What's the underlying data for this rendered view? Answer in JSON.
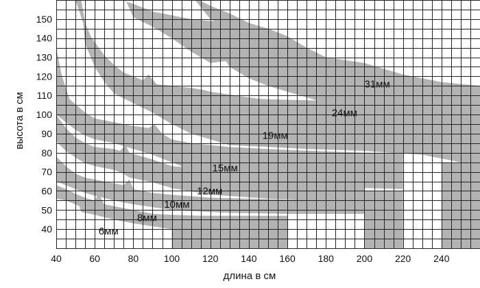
{
  "chart_data": {
    "type": "area",
    "title": "",
    "xlabel": "длина в см",
    "ylabel": "высота в см",
    "xlim": [
      40,
      260
    ],
    "ylim": [
      30,
      160
    ],
    "x_ticks": [
      40,
      60,
      80,
      100,
      120,
      140,
      160,
      180,
      200,
      220,
      240
    ],
    "y_ticks": [
      40,
      50,
      60,
      70,
      80,
      90,
      100,
      110,
      120,
      130,
      140,
      150
    ],
    "grid": true,
    "x_grid_step": 5,
    "y_grid_step": 5,
    "band_color": "#b3b3b3",
    "series": [
      {
        "name": "6мм",
        "label_pos": [
          62,
          39
        ],
        "upper": [
          [
            40,
            63
          ],
          [
            45,
            61
          ],
          [
            50,
            58.5
          ],
          [
            55,
            56.5
          ],
          [
            60,
            55
          ],
          [
            62,
            58.5
          ],
          [
            65,
            53
          ],
          [
            70,
            52
          ],
          [
            80,
            50
          ],
          [
            90,
            48
          ],
          [
            100,
            47.5
          ],
          [
            130,
            46.5
          ],
          [
            160,
            46.5
          ]
        ],
        "lower": [
          [
            40,
            56
          ],
          [
            45,
            55
          ],
          [
            50,
            53
          ],
          [
            52,
            52
          ],
          [
            53,
            49
          ],
          [
            60,
            47.5
          ],
          [
            70,
            45
          ],
          [
            80,
            43
          ],
          [
            90,
            41.5
          ],
          [
            100,
            40
          ],
          [
            130,
            39
          ],
          [
            160,
            38
          ]
        ],
        "bars": [
          {
            "x1": 100,
            "x2": 160,
            "top": 47,
            "bottom": 30
          }
        ]
      },
      {
        "name": "8мм",
        "label_pos": [
          82,
          46
        ],
        "upper": [
          [
            40,
            78
          ],
          [
            45,
            73
          ],
          [
            50,
            69
          ],
          [
            55,
            67
          ],
          [
            60,
            66
          ],
          [
            70,
            64
          ],
          [
            75,
            63
          ],
          [
            78,
            66
          ],
          [
            80,
            61
          ],
          [
            90,
            59
          ],
          [
            100,
            58
          ],
          [
            120,
            56.5
          ],
          [
            160,
            55.5
          ],
          [
            200,
            55.5
          ]
        ],
        "lower": [
          [
            40,
            65
          ],
          [
            45,
            63
          ],
          [
            50,
            61
          ],
          [
            55,
            59
          ],
          [
            60,
            57.5
          ],
          [
            70,
            55
          ],
          [
            80,
            53
          ],
          [
            90,
            51.5
          ],
          [
            100,
            50
          ],
          [
            130,
            48.5
          ],
          [
            160,
            48
          ],
          [
            200,
            48
          ]
        ],
        "bars": []
      },
      {
        "name": "10мм",
        "label_pos": [
          96,
          53
        ],
        "upper": [
          [
            40,
            100
          ],
          [
            45,
            93
          ],
          [
            50,
            88
          ],
          [
            55,
            85
          ],
          [
            60,
            83
          ],
          [
            70,
            82
          ],
          [
            73,
            81
          ],
          [
            76,
            84
          ],
          [
            78,
            80
          ],
          [
            90,
            76.5
          ],
          [
            100,
            73
          ],
          [
            120,
            71.5
          ],
          [
            140,
            71
          ],
          [
            160,
            70
          ],
          [
            180,
            69
          ],
          [
            200,
            68
          ]
        ],
        "lower": [
          [
            40,
            86
          ],
          [
            45,
            81
          ],
          [
            50,
            77.5
          ],
          [
            55,
            74.5
          ],
          [
            60,
            73
          ],
          [
            70,
            71
          ],
          [
            75,
            69
          ],
          [
            78,
            67
          ],
          [
            90,
            64.5
          ],
          [
            100,
            61.5
          ],
          [
            120,
            58
          ],
          [
            150,
            56
          ],
          [
            180,
            55
          ],
          [
            200,
            55
          ]
        ],
        "bars": []
      },
      {
        "name": "12мм",
        "label_pos": [
          113,
          60
        ],
        "upper": [
          [
            40,
            135
          ],
          [
            43,
            120
          ],
          [
            47,
            108
          ],
          [
            55,
            101
          ],
          [
            60,
            98
          ],
          [
            70,
            96
          ],
          [
            80,
            94
          ],
          [
            88,
            93
          ],
          [
            91,
            95
          ],
          [
            95,
            90
          ],
          [
            100,
            87
          ],
          [
            110,
            85
          ],
          [
            130,
            83
          ],
          [
            160,
            81.5
          ],
          [
            200,
            80
          ],
          [
            220,
            80
          ]
        ],
        "lower": [
          [
            40,
            100
          ],
          [
            45,
            96
          ],
          [
            50,
            92
          ],
          [
            55,
            89
          ],
          [
            60,
            87
          ],
          [
            70,
            85
          ],
          [
            80,
            82
          ],
          [
            90,
            79
          ],
          [
            100,
            75
          ],
          [
            110,
            71
          ],
          [
            120,
            68
          ],
          [
            140,
            65
          ],
          [
            170,
            63
          ],
          [
            200,
            61.5
          ],
          [
            220,
            61
          ]
        ],
        "bars": [
          {
            "x1": 200,
            "x2": 220,
            "top": 60,
            "bottom": 30
          }
        ]
      },
      {
        "name": "15мм",
        "label_pos": [
          121,
          72
        ],
        "upper": [
          [
            50,
            160
          ],
          [
            55,
            145
          ],
          [
            60,
            138
          ],
          [
            65,
            131
          ],
          [
            70,
            126
          ],
          [
            75,
            122
          ],
          [
            80,
            120
          ],
          [
            85,
            118
          ],
          [
            88,
            121
          ],
          [
            92,
            116
          ],
          [
            100,
            113
          ],
          [
            110,
            111
          ],
          [
            120,
            110
          ],
          [
            130,
            109
          ],
          [
            150,
            108
          ],
          [
            190,
            107
          ],
          [
            240,
            104
          ],
          [
            260,
            102
          ]
        ],
        "lower": [
          [
            53,
            160
          ],
          [
            55,
            137
          ],
          [
            60,
            125
          ],
          [
            65,
            117
          ],
          [
            70,
            111
          ],
          [
            80,
            106
          ],
          [
            90,
            101
          ],
          [
            100,
            95
          ],
          [
            110,
            90
          ],
          [
            120,
            87
          ],
          [
            130,
            84
          ],
          [
            150,
            83
          ],
          [
            170,
            82
          ],
          [
            200,
            81
          ],
          [
            230,
            79
          ],
          [
            240,
            77
          ],
          [
            260,
            73
          ]
        ],
        "bars": [
          {
            "x1": 240,
            "x2": 260,
            "top": 75,
            "bottom": 30
          }
        ]
      },
      {
        "name": "19мм",
        "label_pos": [
          147,
          89
        ],
        "upper": [
          [
            50,
            160
          ],
          [
            55,
            145
          ],
          [
            60,
            135
          ],
          [
            65,
            127
          ],
          [
            70,
            122
          ],
          [
            80,
            118
          ],
          [
            90,
            116
          ],
          [
            100,
            115
          ],
          [
            110,
            114
          ],
          [
            116,
            113
          ],
          [
            120,
            112
          ],
          [
            140,
            109
          ],
          [
            160,
            106
          ],
          [
            190,
            104
          ],
          [
            220,
            102
          ],
          [
            260,
            100
          ]
        ],
        "lower": [
          [
            53,
            160
          ],
          [
            55,
            148
          ],
          [
            60,
            136
          ],
          [
            65,
            125
          ],
          [
            70,
            117
          ],
          [
            80,
            110
          ],
          [
            90,
            105
          ],
          [
            100,
            101
          ],
          [
            110,
            95
          ],
          [
            120,
            90
          ],
          [
            130,
            87
          ],
          [
            150,
            85
          ],
          [
            170,
            84
          ],
          [
            200,
            84
          ],
          [
            230,
            83
          ],
          [
            260,
            82
          ]
        ],
        "bars": []
      },
      {
        "name": "24мм",
        "label_pos": [
          183,
          101
        ],
        "upper": [
          [
            74,
            160
          ],
          [
            80,
            158
          ],
          [
            90,
            154
          ],
          [
            100,
            152
          ],
          [
            110,
            150
          ],
          [
            120,
            149
          ],
          [
            130,
            148
          ],
          [
            140,
            147
          ],
          [
            150,
            145
          ],
          [
            160,
            141
          ],
          [
            170,
            135
          ],
          [
            180,
            130
          ],
          [
            200,
            127
          ],
          [
            220,
            121
          ],
          [
            240,
            117
          ],
          [
            260,
            115
          ]
        ],
        "lower": [
          [
            76,
            160
          ],
          [
            80,
            151
          ],
          [
            90,
            146
          ],
          [
            100,
            140
          ],
          [
            110,
            133
          ],
          [
            120,
            127
          ],
          [
            128,
            128
          ],
          [
            130,
            125
          ],
          [
            140,
            119
          ],
          [
            150,
            115
          ],
          [
            160,
            112
          ],
          [
            170,
            109
          ],
          [
            180,
            106
          ],
          [
            200,
            103
          ],
          [
            220,
            100
          ],
          [
            260,
            98
          ]
        ],
        "bars": []
      },
      {
        "name": "31мм",
        "label_pos": [
          200,
          116
        ],
        "upper": [
          [
            114,
            160
          ],
          [
            120,
            157
          ],
          [
            130,
            153
          ],
          [
            140,
            148
          ],
          [
            150,
            145
          ],
          [
            160,
            141
          ],
          [
            175,
            130
          ],
          [
            190,
            124
          ],
          [
            210,
            119
          ],
          [
            230,
            116
          ],
          [
            260,
            113
          ]
        ],
        "lower": [
          [
            112,
            160
          ],
          [
            120,
            150
          ],
          [
            130,
            144
          ],
          [
            140,
            138
          ],
          [
            150,
            132
          ],
          [
            160,
            124
          ],
          [
            175,
            116
          ],
          [
            190,
            110
          ],
          [
            210,
            105
          ],
          [
            230,
            101
          ],
          [
            260,
            98
          ]
        ],
        "bars": []
      }
    ]
  }
}
